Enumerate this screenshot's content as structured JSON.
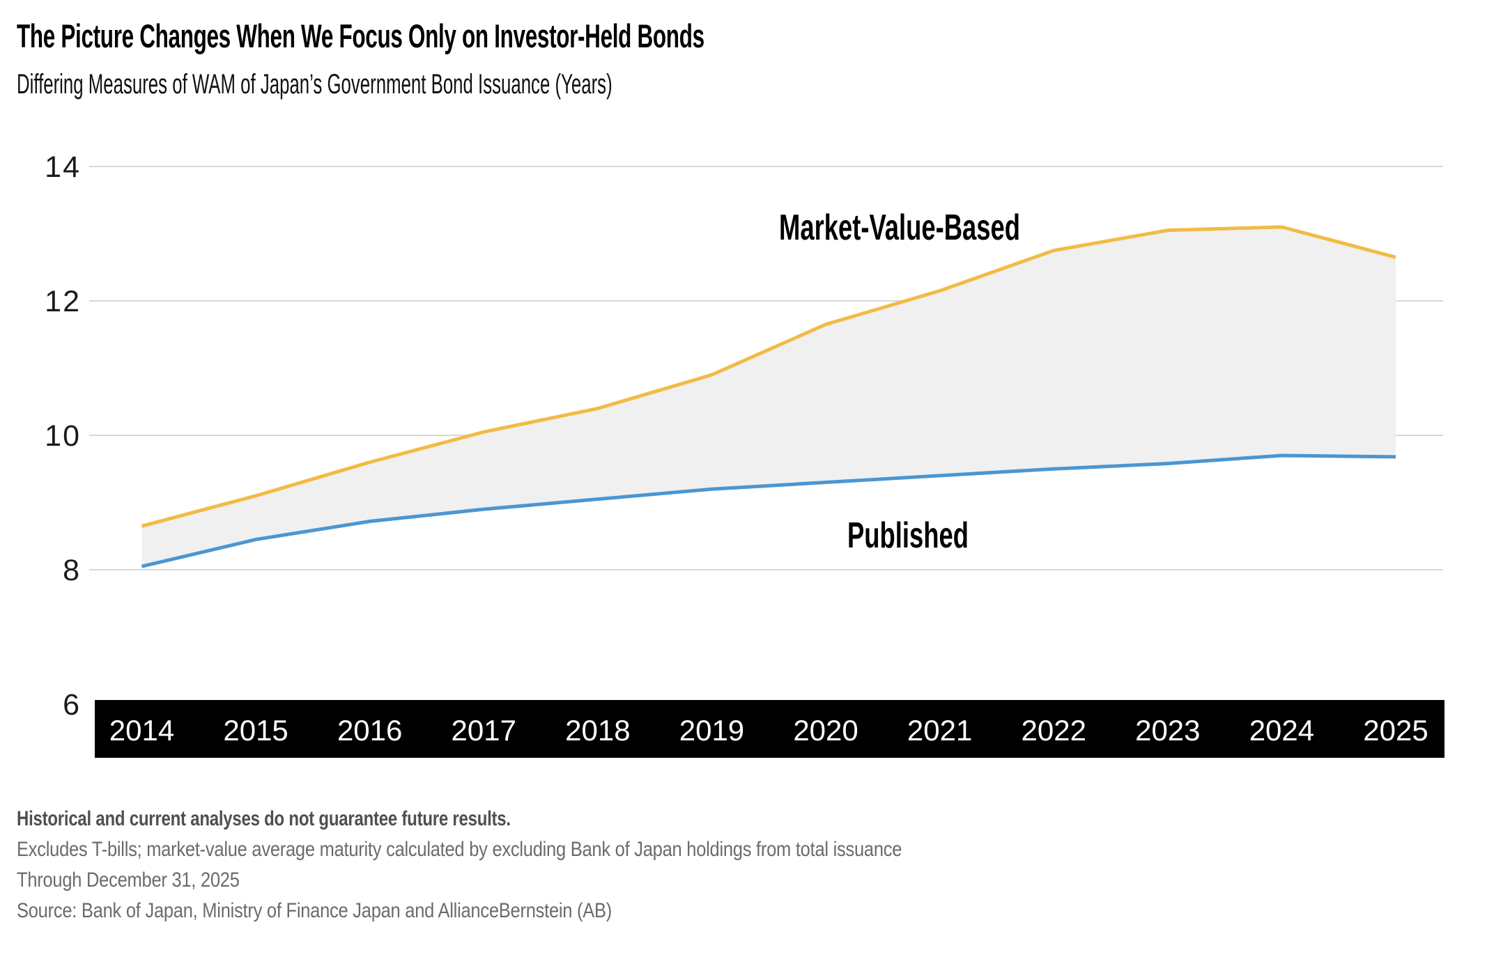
{
  "header": {
    "title": "The Picture Changes When We Focus Only on Investor-Held Bonds",
    "subtitle": "Differing Measures of WAM of Japan’s Government Bond Issuance (Years)"
  },
  "chart_data": {
    "type": "area",
    "x": [
      2014,
      2015,
      2016,
      2017,
      2018,
      2019,
      2020,
      2021,
      2022,
      2023,
      2024,
      2025
    ],
    "series": [
      {
        "name": "Market-Value-Based",
        "color": "#F2BB45",
        "values": [
          8.65,
          9.1,
          9.6,
          10.05,
          10.4,
          10.9,
          11.65,
          12.15,
          12.75,
          13.05,
          13.1,
          12.65
        ]
      },
      {
        "name": "Published",
        "color": "#4B96D2",
        "values": [
          8.05,
          8.45,
          8.72,
          8.9,
          9.05,
          9.2,
          9.3,
          9.4,
          9.5,
          9.58,
          9.7,
          9.68
        ]
      }
    ],
    "ylim": [
      6,
      14
    ],
    "yticks": [
      14,
      12,
      10,
      8,
      6
    ],
    "gridline_values": [
      14,
      12,
      10,
      8
    ],
    "band_fill": "#F0F0F0",
    "gridline_color": "#D8D8D8",
    "axis_bar_color": "#000000",
    "axis_label_color": "#FFFFFF",
    "ytick_label_color": "#1B1B1B",
    "grid": "horizontal-only",
    "legend_position": "inline-annotations"
  },
  "footnotes": [
    "Historical and current analyses do not guarantee future results.",
    "Excludes T-bills; market-value average maturity calculated by excluding Bank of Japan holdings from total issuance",
    "Through December 31, 2025",
    "Source: Bank of Japan, Ministry of Finance Japan and AllianceBernstein (AB)"
  ]
}
